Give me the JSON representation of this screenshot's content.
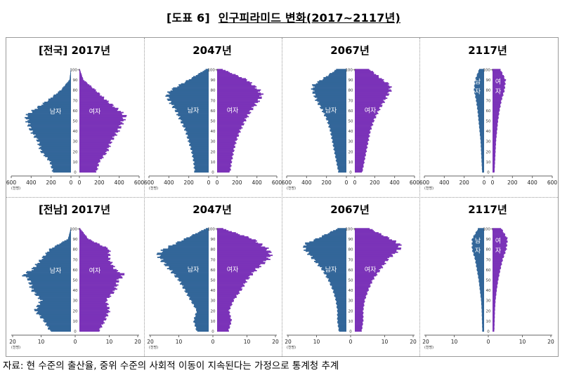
{
  "header": {
    "number": "[도표 6]",
    "title": "인구피라미드 변화(2017~2117년)"
  },
  "source": "자료: 현 수준의 출산율, 중위 수준의 사회적 이동이 지속된다는 가정으로 통계청 추계",
  "colors": {
    "male": "#336699",
    "female": "#7b33b8",
    "axis": "#666666"
  },
  "chart_data": [
    {
      "type": "bar",
      "region": "[전국]",
      "year": "2017년",
      "title": "[전국] 2017년",
      "xlabel_unit": "(천명)",
      "xticks": [
        "600",
        "400",
        "200",
        "0",
        "0",
        "200",
        "400",
        "600"
      ],
      "xlim": [
        0,
        600
      ],
      "ylim": [
        0,
        100
      ],
      "yticks": [
        "0",
        "10",
        "20",
        "30",
        "40",
        "50",
        "60",
        "70",
        "80",
        "90",
        "100+"
      ],
      "labels": {
        "male": "남자",
        "female": "여자"
      },
      "ages": [
        0,
        10,
        20,
        30,
        40,
        50,
        55,
        60,
        70,
        80,
        90,
        100
      ],
      "male": [
        180,
        210,
        300,
        330,
        400,
        440,
        450,
        380,
        230,
        100,
        15,
        2
      ],
      "female": [
        170,
        200,
        280,
        320,
        390,
        440,
        460,
        400,
        270,
        160,
        40,
        5
      ]
    },
    {
      "type": "bar",
      "region": "",
      "year": "2047년",
      "title": "2047년",
      "xlabel_unit": "(천명)",
      "xticks": [
        "600",
        "400",
        "200",
        "0",
        "0",
        "200",
        "400",
        "600"
      ],
      "xlim": [
        0,
        600
      ],
      "ylim": [
        0,
        100
      ],
      "yticks": [
        "0",
        "10",
        "20",
        "30",
        "40",
        "50",
        "60",
        "70",
        "80",
        "90",
        "100+"
      ],
      "labels": {
        "male": "남자",
        "female": "여자"
      },
      "ages": [
        0,
        10,
        20,
        30,
        40,
        50,
        60,
        70,
        75,
        80,
        90,
        100
      ],
      "male": [
        140,
        150,
        170,
        200,
        230,
        280,
        330,
        400,
        420,
        380,
        200,
        30
      ],
      "female": [
        130,
        145,
        165,
        190,
        230,
        280,
        340,
        420,
        450,
        420,
        300,
        60
      ]
    },
    {
      "type": "bar",
      "region": "",
      "year": "2067년",
      "title": "2067년",
      "xlabel_unit": "(천명)",
      "xticks": [
        "600",
        "400",
        "200",
        "0",
        "0",
        "200",
        "400",
        "600"
      ],
      "xlim": [
        0,
        600
      ],
      "ylim": [
        0,
        100
      ],
      "yticks": [
        "0",
        "10",
        "20",
        "30",
        "40",
        "50",
        "60",
        "70",
        "80",
        "90",
        "100+"
      ],
      "labels": {
        "male": "남자",
        "female": "여자"
      },
      "ages": [
        0,
        10,
        20,
        30,
        40,
        50,
        60,
        70,
        80,
        85,
        90,
        100
      ],
      "male": [
        80,
        100,
        120,
        140,
        160,
        190,
        240,
        300,
        340,
        330,
        250,
        100
      ],
      "female": [
        75,
        95,
        115,
        135,
        155,
        190,
        240,
        300,
        360,
        350,
        280,
        150
      ]
    },
    {
      "type": "bar",
      "region": "",
      "year": "2117년",
      "title": "2117년",
      "xlabel_unit": "(천명)",
      "xticks": [
        "600",
        "400",
        "200",
        "0",
        "0",
        "200",
        "400",
        "600"
      ],
      "xlim": [
        0,
        600
      ],
      "ylim": [
        0,
        100
      ],
      "yticks": [
        "0",
        "10",
        "20",
        "30",
        "40",
        "50",
        "60",
        "70",
        "80",
        "90",
        "100+"
      ],
      "labels": {
        "male": "남자",
        "female": "여자"
      },
      "ages": [
        0,
        10,
        20,
        30,
        40,
        50,
        60,
        70,
        80,
        90,
        100
      ],
      "male": [
        20,
        25,
        30,
        35,
        45,
        55,
        65,
        80,
        100,
        90,
        50
      ],
      "female": [
        20,
        25,
        30,
        35,
        45,
        55,
        70,
        90,
        120,
        130,
        80
      ]
    },
    {
      "type": "bar",
      "region": "[전남]",
      "year": "2017년",
      "title": "[전남] 2017년",
      "xlabel_unit": "(천명)",
      "xticks": [
        "20",
        "10",
        "0",
        "10",
        "20"
      ],
      "xlim": [
        0,
        20
      ],
      "ylim": [
        0,
        100
      ],
      "yticks": [
        "0",
        "10",
        "20",
        "30",
        "40",
        "50",
        "60",
        "70",
        "80",
        "90",
        "100+"
      ],
      "labels": {
        "male": "남자",
        "female": "여자"
      },
      "ages": [
        0,
        10,
        20,
        30,
        40,
        50,
        55,
        60,
        70,
        80,
        90,
        100
      ],
      "male": [
        7,
        9,
        12,
        10,
        13,
        14,
        16,
        13,
        10,
        7,
        1,
        0.1
      ],
      "female": [
        6.5,
        8.5,
        10,
        9,
        12,
        13,
        15,
        12,
        10,
        10,
        3,
        0.3
      ]
    },
    {
      "type": "bar",
      "region": "",
      "year": "2047년",
      "title": "2047년",
      "xlabel_unit": "(천명)",
      "xticks": [
        "20",
        "10",
        "0",
        "10",
        "20"
      ],
      "xlim": [
        0,
        20
      ],
      "ylim": [
        0,
        100
      ],
      "yticks": [
        "0",
        "10",
        "20",
        "30",
        "40",
        "50",
        "60",
        "70",
        "80",
        "90",
        "100+"
      ],
      "labels": {
        "male": "남자",
        "female": "여자"
      },
      "ages": [
        0,
        10,
        20,
        30,
        40,
        50,
        60,
        70,
        75,
        80,
        90,
        100
      ],
      "male": [
        4,
        5,
        4,
        6,
        8,
        10,
        13,
        16,
        17,
        15,
        8,
        1
      ],
      "female": [
        3.8,
        4.8,
        4,
        5.5,
        8,
        10,
        13,
        17,
        18,
        17,
        12,
        2
      ]
    },
    {
      "type": "bar",
      "region": "",
      "year": "2067년",
      "title": "2067년",
      "xlabel_unit": "(천명)",
      "xticks": [
        "20",
        "10",
        "0",
        "10",
        "20"
      ],
      "xlim": [
        0,
        20
      ],
      "ylim": [
        0,
        100
      ],
      "yticks": [
        "0",
        "10",
        "20",
        "30",
        "40",
        "50",
        "60",
        "70",
        "80",
        "90",
        "100+"
      ],
      "labels": {
        "male": "남자",
        "female": "여자"
      },
      "ages": [
        0,
        10,
        20,
        30,
        40,
        50,
        60,
        70,
        80,
        85,
        90,
        100
      ],
      "male": [
        2.5,
        3,
        3,
        3.5,
        4.5,
        6,
        8,
        11,
        14,
        14,
        10,
        3
      ],
      "female": [
        2.3,
        2.8,
        2.8,
        3.3,
        4.5,
        6,
        8.5,
        11,
        15,
        15,
        12,
        5
      ]
    },
    {
      "type": "bar",
      "region": "",
      "year": "2117년",
      "title": "2117년",
      "xlabel_unit": "(천명)",
      "xticks": [
        "20",
        "10",
        "0",
        "10",
        "20"
      ],
      "xlim": [
        0,
        20
      ],
      "ylim": [
        0,
        100
      ],
      "yticks": [
        "0",
        "10",
        "20",
        "30",
        "40",
        "50",
        "60",
        "70",
        "80",
        "90",
        "100+"
      ],
      "labels": {
        "male": "남자",
        "female": "여자"
      },
      "ages": [
        0,
        10,
        20,
        30,
        40,
        50,
        60,
        70,
        80,
        90,
        100
      ],
      "male": [
        0.6,
        0.7,
        0.8,
        1,
        1.4,
        1.8,
        2.4,
        3,
        4,
        4,
        2
      ],
      "female": [
        0.6,
        0.7,
        0.8,
        1,
        1.4,
        1.9,
        2.6,
        3.4,
        4.6,
        5,
        3
      ]
    }
  ]
}
